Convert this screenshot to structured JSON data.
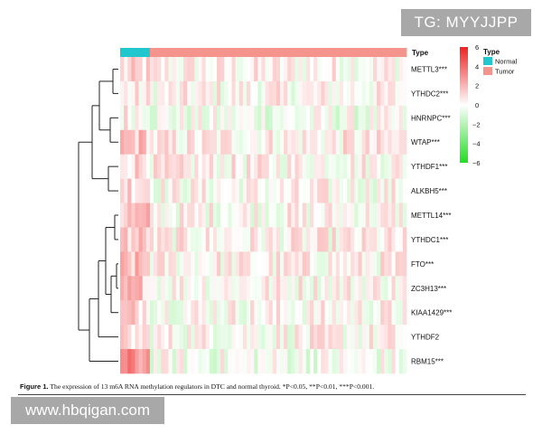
{
  "watermarks": {
    "channel": "TG: MYYJJPP",
    "site": "www.hbqigan.com"
  },
  "figure": {
    "caption_label": "Figure 1.",
    "caption_text": "The expression of 13 m6A RNA methylation regulators in DTC and normal thyroid. *P<0.05, **P<0.01, ***P<0.001."
  },
  "chart_data": {
    "type": "heatmap",
    "title": "",
    "rows": [
      "METTL3***",
      "YTHDC2***",
      "HNRNPC***",
      "WTAP***",
      "YTHDF1***",
      "ALKBH5***",
      "METTL14***",
      "YTHDC1***",
      "FTO***",
      "ZC3H13***",
      "KIAA1429***",
      "YTHDF2",
      "RBM15***"
    ],
    "annotation": {
      "title": "Type",
      "groups": [
        {
          "name": "Normal",
          "color": "#21c7cf",
          "n_samples": 8
        },
        {
          "name": "Tumor",
          "color": "#f4948c",
          "n_samples": 69
        }
      ]
    },
    "row_mean_normal": [
      0.8,
      0.3,
      0.5,
      1.6,
      1.2,
      1.3,
      1.5,
      1.4,
      1.5,
      1.6,
      1.2,
      0.6,
      2.8
    ],
    "row_mean_tumor": [
      0.3,
      0.2,
      -0.3,
      0.4,
      0.3,
      0.1,
      0.2,
      0.3,
      0.3,
      0.3,
      0.2,
      0.2,
      -0.2
    ],
    "colorbar": {
      "range": [
        -6,
        6
      ],
      "ticks": [
        6,
        4,
        2,
        0,
        -2,
        -4,
        -6
      ],
      "colors": [
        "#ee2222",
        "#ffffff",
        "#22dd22"
      ]
    },
    "dendrogram": "hierarchical clustering of rows"
  }
}
